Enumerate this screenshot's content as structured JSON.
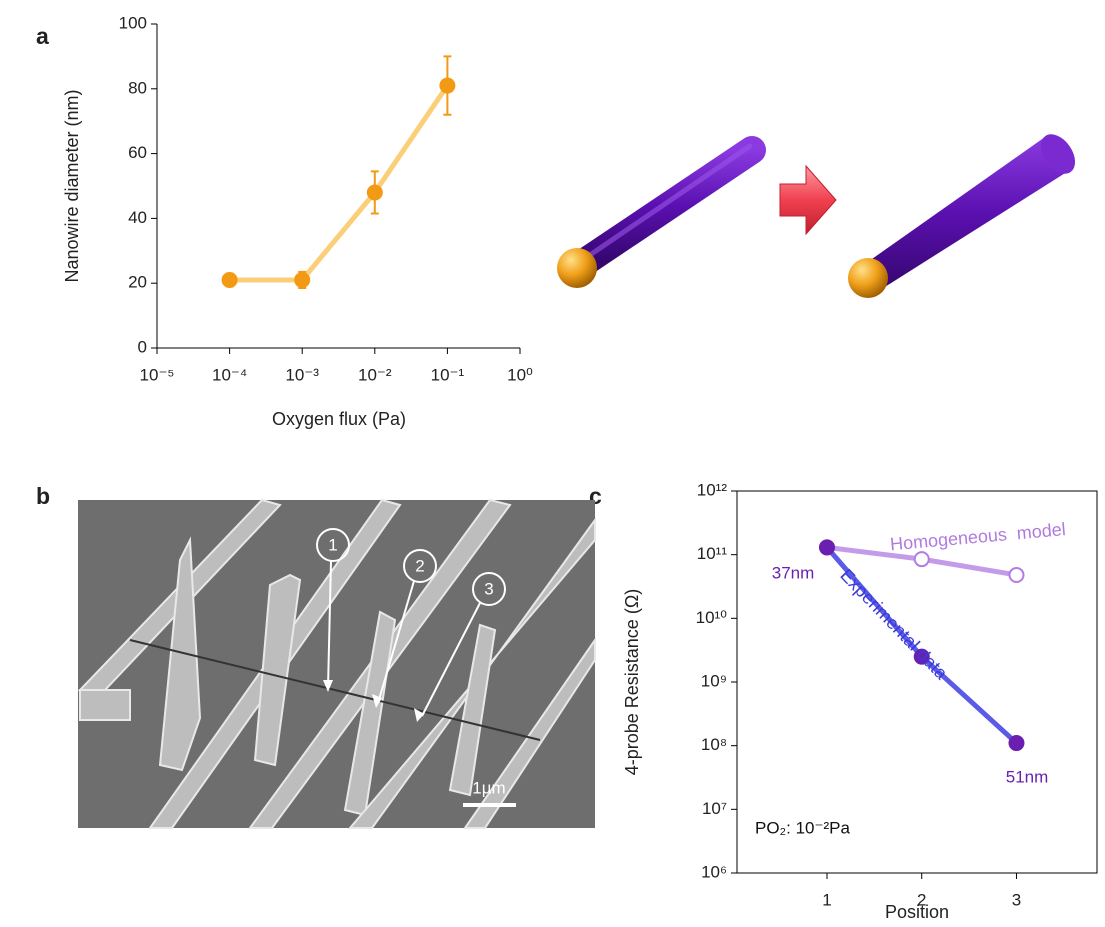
{
  "panel_labels": [
    "a",
    "b",
    "c"
  ],
  "image": {
    "markers": [
      "1",
      "2",
      "3"
    ],
    "scale_bar": "1µm"
  },
  "chart_data": [
    {
      "type": "line",
      "x_label": "Oxygen flux (Pa)",
      "y_label": "Nanowire diameter (nm)",
      "xlog": true,
      "xlim": [
        1e-05,
        1
      ],
      "xticks": [
        {
          "value": 1e-05,
          "label": "10⁻⁵"
        },
        {
          "value": 0.0001,
          "label": "10⁻⁴"
        },
        {
          "value": 0.001,
          "label": "10⁻³"
        },
        {
          "value": 0.01,
          "label": "10⁻²"
        },
        {
          "value": 0.1,
          "label": "10⁻¹"
        },
        {
          "value": 1,
          "label": "10⁰"
        }
      ],
      "ylim": [
        0,
        100
      ],
      "yticks": [
        0,
        20,
        40,
        60,
        80,
        100
      ],
      "x": [
        0.0001,
        0.001,
        0.01,
        0.1
      ],
      "series": [
        {
          "values": [
            21,
            21,
            48,
            81
          ],
          "errors": [
            2,
            2.5,
            6.5,
            9
          ],
          "color": "#fbcf78",
          "marker_color": "#f29a14"
        }
      ]
    },
    {
      "type": "line",
      "x_label": "Position",
      "y_label": "4-probe Resistance (Ω)",
      "ylog": true,
      "xlim": [
        0.05,
        3.85
      ],
      "xticks": [
        1,
        2,
        3
      ],
      "ylim": [
        1000000,
        1000000000000
      ],
      "yticks": [
        {
          "value": 1000000,
          "label": "10⁶"
        },
        {
          "value": 10000000,
          "label": "10⁷"
        },
        {
          "value": 100000000,
          "label": "10⁸"
        },
        {
          "value": 1000000000,
          "label": "10⁹"
        },
        {
          "value": 10000000000,
          "label": "10¹⁰"
        },
        {
          "value": 100000000000,
          "label": "10¹¹"
        },
        {
          "value": 1000000000000,
          "label": "10¹²"
        }
      ],
      "x": [
        1,
        2,
        3
      ],
      "series": [
        {
          "name": "Homogeneous  model",
          "values": [
            130000000000,
            85000000000,
            48000000000
          ],
          "color": "#c49be8",
          "marker_color": "#b27ce6",
          "marker": "open"
        },
        {
          "name": "Experimental data",
          "values": [
            130000000000,
            2500000000,
            110000000
          ],
          "color": "#5b5be8",
          "marker_color": "#6a1fb0",
          "marker": "filled"
        }
      ],
      "annotations": [
        "37nm",
        "51nm",
        "PO₂: 10⁻²Pa"
      ]
    }
  ]
}
